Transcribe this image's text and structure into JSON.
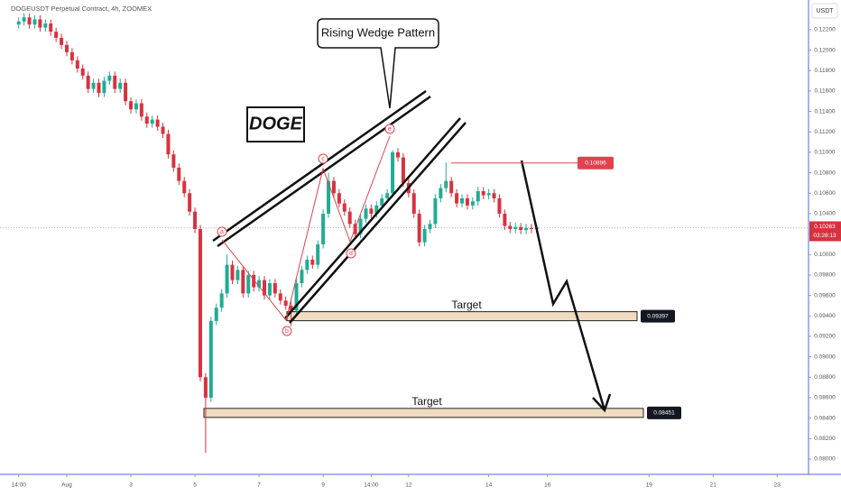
{
  "chart_data": {
    "type": "candlestick",
    "title": "DOGEUSDT Perpetual Contract, 4h, ZOOMEX",
    "currency": "USDT",
    "countdown": "03:28:13",
    "up_color": "#22ab94",
    "down_color": "#d8323f",
    "grid": false,
    "ylim": [
      0.0785,
      0.1249
    ],
    "xlim": [
      23.5,
      174.7
    ],
    "yticks": [
      {
        "value": 0.122,
        "label": "0.12200"
      },
      {
        "value": 0.12,
        "label": "0.12000"
      },
      {
        "value": 0.118,
        "label": "0.11800"
      },
      {
        "value": 0.116,
        "label": "0.11600"
      },
      {
        "value": 0.114,
        "label": "0.11400"
      },
      {
        "value": 0.112,
        "label": "0.11200"
      },
      {
        "value": 0.11,
        "label": "0.11000"
      },
      {
        "value": 0.108,
        "label": "0.10800"
      },
      {
        "value": 0.106,
        "label": "0.10600"
      },
      {
        "value": 0.104,
        "label": "0.10400"
      },
      {
        "value": 0.102,
        "label": "0.10200"
      },
      {
        "value": 0.1,
        "label": "0.10000"
      },
      {
        "value": 0.098,
        "label": "0.09800"
      },
      {
        "value": 0.096,
        "label": "0.09600"
      },
      {
        "value": 0.094,
        "label": "0.09400"
      },
      {
        "value": 0.092,
        "label": "0.09200"
      },
      {
        "value": 0.09,
        "label": "0.09000"
      },
      {
        "value": 0.088,
        "label": "0.08800"
      },
      {
        "value": 0.086,
        "label": "0.08600"
      },
      {
        "value": 0.084,
        "label": "0.08400"
      },
      {
        "value": 0.082,
        "label": "0.08200"
      },
      {
        "value": 0.08,
        "label": "0.08000"
      }
    ],
    "xticks": [
      {
        "value": 27,
        "label": "14:00"
      },
      {
        "value": 36,
        "label": "Aug"
      },
      {
        "value": 48,
        "label": "3"
      },
      {
        "value": 60,
        "label": "5"
      },
      {
        "value": 72,
        "label": "7"
      },
      {
        "value": 84,
        "label": "9"
      },
      {
        "value": 93,
        "label": "14:00"
      },
      {
        "value": 100,
        "label": "12"
      },
      {
        "value": 115,
        "label": "14"
      },
      {
        "value": 126,
        "label": "16"
      },
      {
        "value": 145,
        "label": "19"
      },
      {
        "value": 157,
        "label": "21"
      },
      {
        "value": 169,
        "label": "23"
      }
    ],
    "x": [
      27,
      28,
      29,
      30,
      31,
      32,
      33,
      34,
      35,
      36,
      37,
      38,
      39,
      40,
      41,
      42,
      43,
      44,
      45,
      46,
      47,
      48,
      49,
      50,
      51,
      52,
      53,
      54,
      55,
      56,
      57,
      58,
      59,
      60,
      61,
      62,
      63,
      64,
      65,
      66,
      67,
      68,
      69,
      70,
      71,
      72,
      73,
      74,
      75,
      76,
      77,
      78,
      79,
      80,
      81,
      82,
      83,
      84,
      85,
      86,
      87,
      88,
      89,
      90,
      91,
      92,
      93,
      94,
      95,
      96,
      97,
      98,
      99,
      100,
      101,
      102,
      103,
      104,
      105,
      106,
      107,
      108,
      109,
      110,
      111,
      112,
      113,
      114,
      115,
      116,
      117,
      118,
      119,
      120,
      121,
      122,
      123,
      124
    ],
    "ohlc": [
      [
        0.1225,
        0.1232,
        0.1221,
        0.1228
      ],
      [
        0.1228,
        0.1236,
        0.1224,
        0.1232
      ],
      [
        0.1232,
        0.1236,
        0.1221,
        0.1225
      ],
      [
        0.1225,
        0.1234,
        0.1221,
        0.123
      ],
      [
        0.123,
        0.1234,
        0.1218,
        0.1222
      ],
      [
        0.1222,
        0.123,
        0.1218,
        0.1226
      ],
      [
        0.1226,
        0.123,
        0.1214,
        0.1218
      ],
      [
        0.1218,
        0.1222,
        0.1208,
        0.1212
      ],
      [
        0.1212,
        0.1216,
        0.1201,
        0.1205
      ],
      [
        0.1205,
        0.1209,
        0.1194,
        0.1198
      ],
      [
        0.1198,
        0.1202,
        0.1186,
        0.119
      ],
      [
        0.119,
        0.1194,
        0.1178,
        0.1182
      ],
      [
        0.1182,
        0.1186,
        0.1171,
        0.1175
      ],
      [
        0.1175,
        0.1179,
        0.1158,
        0.1162
      ],
      [
        0.1162,
        0.1172,
        0.1158,
        0.1168
      ],
      [
        0.1168,
        0.1172,
        0.1154,
        0.1158
      ],
      [
        0.1158,
        0.1174,
        0.1154,
        0.117
      ],
      [
        0.117,
        0.1179,
        0.1166,
        0.1175
      ],
      [
        0.1175,
        0.1179,
        0.1158,
        0.1162
      ],
      [
        0.1162,
        0.1172,
        0.1158,
        0.1168
      ],
      [
        0.1168,
        0.1172,
        0.1146,
        0.115
      ],
      [
        0.115,
        0.1154,
        0.1138,
        0.1142
      ],
      [
        0.1142,
        0.1152,
        0.1138,
        0.1148
      ],
      [
        0.1148,
        0.1152,
        0.1131,
        0.1135
      ],
      [
        0.1135,
        0.1139,
        0.1124,
        0.1128
      ],
      [
        0.1128,
        0.1136,
        0.1124,
        0.1132
      ],
      [
        0.1132,
        0.1136,
        0.1121,
        0.1125
      ],
      [
        0.1125,
        0.1129,
        0.1114,
        0.1118
      ],
      [
        0.1118,
        0.1122,
        0.1094,
        0.1098
      ],
      [
        0.1098,
        0.1102,
        0.1081,
        0.1085
      ],
      [
        0.1085,
        0.1089,
        0.1068,
        0.1072
      ],
      [
        0.1072,
        0.1076,
        0.1056,
        0.106
      ],
      [
        0.106,
        0.1064,
        0.1038,
        0.1042
      ],
      [
        0.1042,
        0.1046,
        0.1021,
        0.1025
      ],
      [
        0.1025,
        0.1029,
        0.0876,
        0.088
      ],
      [
        0.088,
        0.0884,
        0.0806,
        0.086
      ],
      [
        0.086,
        0.0939,
        0.0856,
        0.0935
      ],
      [
        0.0935,
        0.0952,
        0.0931,
        0.0948
      ],
      [
        0.0948,
        0.0966,
        0.0944,
        0.0962
      ],
      [
        0.0962,
        0.1,
        0.0958,
        0.099
      ],
      [
        0.099,
        0.0994,
        0.0971,
        0.0975
      ],
      [
        0.0975,
        0.0989,
        0.0971,
        0.0985
      ],
      [
        0.0985,
        0.0989,
        0.0958,
        0.0962
      ],
      [
        0.0962,
        0.0984,
        0.0958,
        0.098
      ],
      [
        0.098,
        0.0984,
        0.0964,
        0.0968
      ],
      [
        0.0968,
        0.0979,
        0.0964,
        0.0975
      ],
      [
        0.0975,
        0.0979,
        0.0956,
        0.096
      ],
      [
        0.096,
        0.0976,
        0.0956,
        0.0972
      ],
      [
        0.0972,
        0.0976,
        0.0958,
        0.0962
      ],
      [
        0.0962,
        0.0966,
        0.0951,
        0.0955
      ],
      [
        0.0955,
        0.0959,
        0.0946,
        0.095
      ],
      [
        0.095,
        0.0954,
        0.093,
        0.0945
      ],
      [
        0.0945,
        0.0976,
        0.0941,
        0.0972
      ],
      [
        0.0972,
        0.0989,
        0.0968,
        0.0985
      ],
      [
        0.0985,
        0.0999,
        0.0981,
        0.0995
      ],
      [
        0.0995,
        0.0999,
        0.0986,
        0.099
      ],
      [
        0.099,
        0.1014,
        0.0986,
        0.101
      ],
      [
        0.101,
        0.1044,
        0.1006,
        0.104
      ],
      [
        0.104,
        0.108,
        0.1036,
        0.1072
      ],
      [
        0.1072,
        0.1076,
        0.1056,
        0.106
      ],
      [
        0.106,
        0.1064,
        0.1046,
        0.105
      ],
      [
        0.105,
        0.1054,
        0.1038,
        0.1042
      ],
      [
        0.1042,
        0.1046,
        0.1026,
        0.103
      ],
      [
        0.103,
        0.1034,
        0.1016,
        0.102
      ],
      [
        0.102,
        0.1039,
        0.1016,
        0.1035
      ],
      [
        0.1035,
        0.1049,
        0.1031,
        0.1045
      ],
      [
        0.1045,
        0.1049,
        0.1036,
        0.104
      ],
      [
        0.104,
        0.1052,
        0.1036,
        0.1048
      ],
      [
        0.1048,
        0.1059,
        0.1044,
        0.1055
      ],
      [
        0.1055,
        0.1064,
        0.1051,
        0.106
      ],
      [
        0.106,
        0.1102,
        0.1056,
        0.11
      ],
      [
        0.11,
        0.1104,
        0.1091,
        0.1095
      ],
      [
        0.1095,
        0.1099,
        0.1066,
        0.107
      ],
      [
        0.107,
        0.1074,
        0.1056,
        0.106
      ],
      [
        0.106,
        0.1064,
        0.1036,
        0.104
      ],
      [
        0.104,
        0.1044,
        0.1008,
        0.1012
      ],
      [
        0.1012,
        0.1029,
        0.1008,
        0.1025
      ],
      [
        0.1025,
        0.1034,
        0.1021,
        0.103
      ],
      [
        0.103,
        0.1059,
        0.1026,
        0.1055
      ],
      [
        0.1055,
        0.1069,
        0.1051,
        0.1065
      ],
      [
        0.1065,
        0.109,
        0.1061,
        0.1072
      ],
      [
        0.1072,
        0.1076,
        0.1056,
        0.106
      ],
      [
        0.106,
        0.1064,
        0.1046,
        0.105
      ],
      [
        0.105,
        0.1059,
        0.1046,
        0.1055
      ],
      [
        0.1055,
        0.1059,
        0.1044,
        0.1048
      ],
      [
        0.1048,
        0.1056,
        0.1044,
        0.1052
      ],
      [
        0.1052,
        0.1066,
        0.1048,
        0.1062
      ],
      [
        0.1062,
        0.1066,
        0.1054,
        0.1058
      ],
      [
        0.1058,
        0.1064,
        0.1054,
        0.106
      ],
      [
        0.106,
        0.1064,
        0.1051,
        0.1055
      ],
      [
        0.1055,
        0.1059,
        0.1036,
        0.104
      ],
      [
        0.104,
        0.1044,
        0.1024,
        0.1028
      ],
      [
        0.1028,
        0.1032,
        0.1021,
        0.1025
      ],
      [
        0.1025,
        0.1031,
        0.1021,
        0.1027
      ],
      [
        0.1027,
        0.1031,
        0.102,
        0.1024
      ],
      [
        0.1024,
        0.103,
        0.102,
        0.1026
      ],
      [
        0.1026,
        0.103,
        0.1021,
        0.1025
      ],
      [
        0.1025,
        0.1029,
        0.1021,
        0.10263
      ]
    ],
    "price_line": 0.10896,
    "targets": [
      {
        "name": "Target",
        "value": 0.09397
      },
      {
        "name": "Target",
        "value": 0.08451
      }
    ],
    "annotations": {
      "callout": "Rising Wedge Pattern",
      "badge": "DOGE",
      "wave_labels": [
        "a",
        "b",
        "c",
        "d",
        "e"
      ]
    }
  }
}
